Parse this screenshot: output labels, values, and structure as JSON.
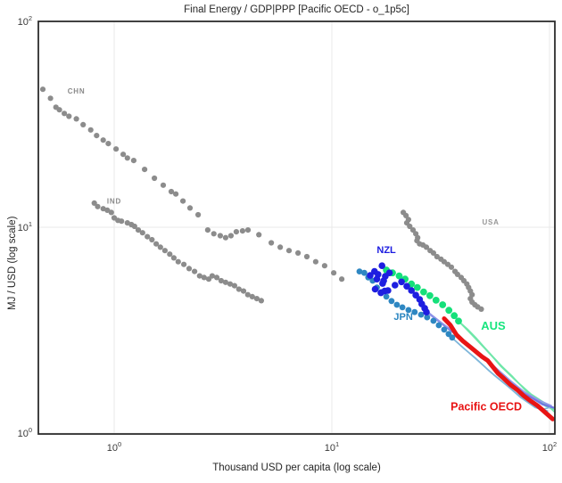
{
  "window": {
    "title": "Final Energy / GDP|PPP [Pacific OECD - o_1p5c]"
  },
  "chart_data": {
    "type": "scatter",
    "title": "Final Energy / GDP|PPP [Pacific OECD - o_1p5c]",
    "xlabel": "Thousand USD per capita (log scale)",
    "ylabel": "MJ / USD (log scale)",
    "x_scale": "log10",
    "y_scale": "log10",
    "xlim": [
      0.45,
      106
    ],
    "ylim": [
      1,
      100
    ],
    "grid": true,
    "x_tick_labels": [
      "10^0",
      "10^1",
      "10^2"
    ],
    "y_tick_labels": [
      "10^0",
      "10^1",
      "10^2"
    ],
    "x_tick_exponents": [
      0,
      1,
      2
    ],
    "y_tick_exponents": [
      0,
      1,
      2
    ],
    "series": [
      {
        "name": "CHN",
        "kind": "scatter",
        "color": "#8c8c8c",
        "size": 3.1,
        "points": [
          [
            0.47,
            46.8
          ],
          [
            0.51,
            42.3
          ],
          [
            0.54,
            38.3
          ],
          [
            0.56,
            37.2
          ],
          [
            0.59,
            35.7
          ],
          [
            0.62,
            34.6
          ],
          [
            0.67,
            33.6
          ],
          [
            0.72,
            31.5
          ],
          [
            0.78,
            29.7
          ],
          [
            0.83,
            27.9
          ],
          [
            0.89,
            26.5
          ],
          [
            0.94,
            25.5
          ],
          [
            1.02,
            24.0
          ],
          [
            1.1,
            22.6
          ],
          [
            1.15,
            21.7
          ],
          [
            1.23,
            21.1
          ],
          [
            1.38,
            19.1
          ],
          [
            1.53,
            17.3
          ],
          [
            1.68,
            16.0
          ],
          [
            1.83,
            14.9
          ],
          [
            1.92,
            14.5
          ],
          [
            2.07,
            13.4
          ],
          [
            2.23,
            12.4
          ],
          [
            2.43,
            11.5
          ],
          [
            2.69,
            9.7
          ],
          [
            2.87,
            9.3
          ],
          [
            3.07,
            9.1
          ],
          [
            3.25,
            8.9
          ],
          [
            3.44,
            9.1
          ],
          [
            3.64,
            9.5
          ],
          [
            3.89,
            9.6
          ],
          [
            4.12,
            9.7
          ],
          [
            4.62,
            9.2
          ],
          [
            5.27,
            8.4
          ],
          [
            5.79,
            8.0
          ],
          [
            6.36,
            7.7
          ],
          [
            6.99,
            7.5
          ],
          [
            7.68,
            7.2
          ],
          [
            8.43,
            6.8
          ],
          [
            9.26,
            6.5
          ],
          [
            10.2,
            6.0
          ],
          [
            11.1,
            5.6
          ]
        ]
      },
      {
        "name": "IND",
        "kind": "scatter",
        "color": "#8c8c8c",
        "size": 3.1,
        "points": [
          [
            0.81,
            13.1
          ],
          [
            0.84,
            12.6
          ],
          [
            0.89,
            12.3
          ],
          [
            0.93,
            12.1
          ],
          [
            0.97,
            11.8
          ],
          [
            1.0,
            11.1
          ],
          [
            1.04,
            10.8
          ],
          [
            1.08,
            10.7
          ],
          [
            1.15,
            10.5
          ],
          [
            1.2,
            10.3
          ],
          [
            1.24,
            10.1
          ],
          [
            1.29,
            9.7
          ],
          [
            1.35,
            9.4
          ],
          [
            1.42,
            9.0
          ],
          [
            1.49,
            8.7
          ],
          [
            1.56,
            8.3
          ],
          [
            1.63,
            8.0
          ],
          [
            1.71,
            7.7
          ],
          [
            1.8,
            7.4
          ],
          [
            1.88,
            7.1
          ],
          [
            1.97,
            6.8
          ],
          [
            2.09,
            6.6
          ],
          [
            2.21,
            6.3
          ],
          [
            2.34,
            6.1
          ],
          [
            2.47,
            5.8
          ],
          [
            2.59,
            5.7
          ],
          [
            2.72,
            5.6
          ],
          [
            2.82,
            5.8
          ],
          [
            2.96,
            5.7
          ],
          [
            3.1,
            5.5
          ],
          [
            3.25,
            5.4
          ],
          [
            3.41,
            5.3
          ],
          [
            3.57,
            5.2
          ],
          [
            3.74,
            5.0
          ],
          [
            3.93,
            4.9
          ],
          [
            4.11,
            4.7
          ],
          [
            4.31,
            4.6
          ],
          [
            4.52,
            4.5
          ],
          [
            4.74,
            4.4
          ]
        ]
      },
      {
        "name": "USA",
        "kind": "scatter",
        "color": "#8c8c8c",
        "size": 3.1,
        "points": [
          [
            21.3,
            11.8
          ],
          [
            21.9,
            11.4
          ],
          [
            22.5,
            10.9
          ],
          [
            22.1,
            10.5
          ],
          [
            22.8,
            10.1
          ],
          [
            23.6,
            9.7
          ],
          [
            24.3,
            9.3
          ],
          [
            24.8,
            8.9
          ],
          [
            24.6,
            8.6
          ],
          [
            25.3,
            8.3
          ],
          [
            26.2,
            8.2
          ],
          [
            27.2,
            8.0
          ],
          [
            28.3,
            7.7
          ],
          [
            29.3,
            7.5
          ],
          [
            30.4,
            7.2
          ],
          [
            31.7,
            7.0
          ],
          [
            32.8,
            6.8
          ],
          [
            34.1,
            6.6
          ],
          [
            35.4,
            6.4
          ],
          [
            36.8,
            6.1
          ],
          [
            37.8,
            5.9
          ],
          [
            39.3,
            5.7
          ],
          [
            40.4,
            5.5
          ],
          [
            41.7,
            5.3
          ],
          [
            42.5,
            5.1
          ],
          [
            43.3,
            4.9
          ],
          [
            44.1,
            4.7
          ],
          [
            43.3,
            4.5
          ],
          [
            44.1,
            4.33
          ],
          [
            45.4,
            4.2
          ],
          [
            46.8,
            4.1
          ],
          [
            48.6,
            4.0
          ]
        ]
      },
      {
        "name": "AUS-proj-a",
        "kind": "line",
        "color": "#6fe7a9",
        "width": 1.6,
        "points": [
          [
            38.2,
            3.5
          ],
          [
            43,
            3.1
          ],
          [
            48,
            2.75
          ],
          [
            54,
            2.4
          ],
          [
            62,
            2.05
          ],
          [
            72,
            1.75
          ],
          [
            84,
            1.5
          ],
          [
            96,
            1.35
          ],
          [
            106,
            1.3
          ]
        ]
      },
      {
        "name": "AUS-proj-b",
        "kind": "line",
        "color": "#6fe7a9",
        "width": 1.6,
        "points": [
          [
            38.2,
            3.5
          ],
          [
            44,
            3.0
          ],
          [
            50,
            2.6
          ],
          [
            58,
            2.2
          ],
          [
            67,
            1.9
          ],
          [
            78,
            1.6
          ],
          [
            90,
            1.42
          ],
          [
            104,
            1.32
          ]
        ]
      },
      {
        "name": "AUS-proj-c",
        "kind": "line",
        "color": "#6fe7a9",
        "width": 1.6,
        "points": [
          [
            38.2,
            3.5
          ],
          [
            42,
            3.2
          ],
          [
            46,
            2.9
          ],
          [
            52,
            2.5
          ],
          [
            60,
            2.1
          ],
          [
            70,
            1.8
          ],
          [
            82,
            1.55
          ],
          [
            95,
            1.4
          ],
          [
            106,
            1.26
          ]
        ]
      },
      {
        "name": "NZL-proj-a",
        "kind": "line",
        "color": "#7176e0",
        "width": 2.4,
        "points": [
          [
            27.2,
            3.9
          ],
          [
            31,
            3.5
          ],
          [
            36,
            3.1
          ],
          [
            42,
            2.7
          ],
          [
            49,
            2.35
          ],
          [
            58,
            2.0
          ],
          [
            68,
            1.73
          ],
          [
            80,
            1.52
          ],
          [
            93,
            1.38
          ],
          [
            104,
            1.33
          ]
        ]
      },
      {
        "name": "NZL-proj-b",
        "kind": "line",
        "color": "#9496ea",
        "width": 1.6,
        "points": [
          [
            27.2,
            3.9
          ],
          [
            30,
            3.6
          ],
          [
            35,
            3.2
          ],
          [
            41,
            2.8
          ],
          [
            48,
            2.4
          ],
          [
            56,
            2.1
          ],
          [
            66,
            1.8
          ],
          [
            77,
            1.58
          ],
          [
            90,
            1.44
          ],
          [
            102,
            1.36
          ]
        ]
      },
      {
        "name": "JPN-proj-a",
        "kind": "line",
        "color": "#7fb6da",
        "width": 1.6,
        "points": [
          [
            35.7,
            2.9
          ],
          [
            40,
            2.6
          ],
          [
            46,
            2.3
          ],
          [
            53,
            2.0
          ],
          [
            62,
            1.75
          ],
          [
            73,
            1.5
          ],
          [
            86,
            1.33
          ],
          [
            98,
            1.28
          ]
        ]
      },
      {
        "name": "JPN-proj-b",
        "kind": "line",
        "color": "#7fb6da",
        "width": 1.6,
        "points": [
          [
            35.7,
            2.9
          ],
          [
            41,
            2.55
          ],
          [
            48,
            2.2
          ],
          [
            56,
            1.9
          ],
          [
            66,
            1.65
          ],
          [
            78,
            1.43
          ],
          [
            92,
            1.3
          ],
          [
            100,
            1.33
          ]
        ]
      },
      {
        "name": "Pacific OECD",
        "kind": "line",
        "color": "#e81414",
        "width": 5,
        "points": [
          [
            32.8,
            3.6
          ],
          [
            35,
            3.35
          ],
          [
            37.4,
            3.0
          ],
          [
            40,
            2.8
          ],
          [
            43.6,
            2.6
          ],
          [
            49,
            2.35
          ],
          [
            52,
            2.25
          ],
          [
            54.8,
            2.1
          ],
          [
            58,
            1.95
          ],
          [
            61.7,
            1.84
          ],
          [
            66,
            1.72
          ],
          [
            71.2,
            1.62
          ],
          [
            76,
            1.52
          ],
          [
            82,
            1.43
          ],
          [
            88,
            1.36
          ],
          [
            92.5,
            1.3
          ],
          [
            98,
            1.23
          ],
          [
            103.5,
            1.17
          ]
        ]
      },
      {
        "name": "AUS",
        "kind": "scatter",
        "color": "#15e07a",
        "size": 3.9,
        "points": [
          [
            17.8,
            6.2
          ],
          [
            19.0,
            6.0
          ],
          [
            20.4,
            5.8
          ],
          [
            21.7,
            5.6
          ],
          [
            23.2,
            5.3
          ],
          [
            24.7,
            5.1
          ],
          [
            26.4,
            4.85
          ],
          [
            28.2,
            4.65
          ],
          [
            30.1,
            4.42
          ],
          [
            32.3,
            4.2
          ],
          [
            34.5,
            3.95
          ],
          [
            36.5,
            3.72
          ],
          [
            38.2,
            3.5
          ]
        ]
      },
      {
        "name": "JPN",
        "kind": "scatter",
        "color": "#2e87c2",
        "size": 3.4,
        "points": [
          [
            13.4,
            6.1
          ],
          [
            14.1,
            6.0
          ],
          [
            14.7,
            5.7
          ],
          [
            15.4,
            5.5
          ],
          [
            16.1,
            5.1
          ],
          [
            16.9,
            4.84
          ],
          [
            17.8,
            4.6
          ],
          [
            18.8,
            4.38
          ],
          [
            19.9,
            4.2
          ],
          [
            21.1,
            4.08
          ],
          [
            22.5,
            3.96
          ],
          [
            24.0,
            3.87
          ],
          [
            25.7,
            3.76
          ],
          [
            27.4,
            3.65
          ],
          [
            29.3,
            3.51
          ],
          [
            31.0,
            3.34
          ],
          [
            32.8,
            3.18
          ],
          [
            34.4,
            3.03
          ],
          [
            35.7,
            2.91
          ]
        ]
      },
      {
        "name": "NZL",
        "kind": "scatter",
        "color": "#1e1ee0",
        "size": 3.8,
        "points": [
          [
            17.0,
            6.5
          ],
          [
            15.7,
            6.1
          ],
          [
            15.0,
            5.83
          ],
          [
            16.1,
            5.6
          ],
          [
            16.3,
            5.9
          ],
          [
            17.6,
            5.78
          ],
          [
            18.4,
            6.0
          ],
          [
            17.3,
            5.5
          ],
          [
            17.1,
            5.33
          ],
          [
            15.8,
            5.0
          ],
          [
            16.8,
            4.8
          ],
          [
            18.1,
            4.93
          ],
          [
            17.5,
            4.9
          ],
          [
            19.5,
            5.23
          ],
          [
            20.9,
            5.43
          ],
          [
            22.1,
            5.17
          ],
          [
            23.2,
            4.93
          ],
          [
            24.3,
            4.68
          ],
          [
            25.3,
            4.46
          ],
          [
            25.9,
            4.24
          ],
          [
            26.7,
            4.04
          ],
          [
            27.2,
            3.87
          ]
        ]
      }
    ],
    "annotations": [
      {
        "text": "CHN",
        "at": [
          0.67,
          44.5
        ],
        "color": "#8a8a8a",
        "size": 8,
        "weight": "bold",
        "spacing": 0.8
      },
      {
        "text": "IND",
        "at": [
          1.0,
          13.0
        ],
        "color": "#8a8a8a",
        "size": 8,
        "weight": "bold",
        "spacing": 0.8
      },
      {
        "text": "USA",
        "at": [
          53.7,
          10.3
        ],
        "color": "#969696",
        "size": 8,
        "weight": "bold",
        "spacing": 0.8
      },
      {
        "text": "NZL",
        "at": [
          17.8,
          7.5
        ],
        "color": "#1c1ce0",
        "size": 11,
        "weight": "bold",
        "spacing": 0
      },
      {
        "text": "JPN",
        "at": [
          21.3,
          3.55
        ],
        "color": "#2a85c0",
        "size": 11,
        "weight": "bold",
        "spacing": 0
      },
      {
        "text": "AUS",
        "at": [
          55.2,
          3.18
        ],
        "color": "#17e57e",
        "size": 13,
        "weight": "bold",
        "spacing": 0
      },
      {
        "text": "Pacific OECD",
        "at": [
          51.2,
          1.29
        ],
        "color": "#e81414",
        "size": 12.5,
        "weight": "bold",
        "spacing": 0
      }
    ]
  }
}
